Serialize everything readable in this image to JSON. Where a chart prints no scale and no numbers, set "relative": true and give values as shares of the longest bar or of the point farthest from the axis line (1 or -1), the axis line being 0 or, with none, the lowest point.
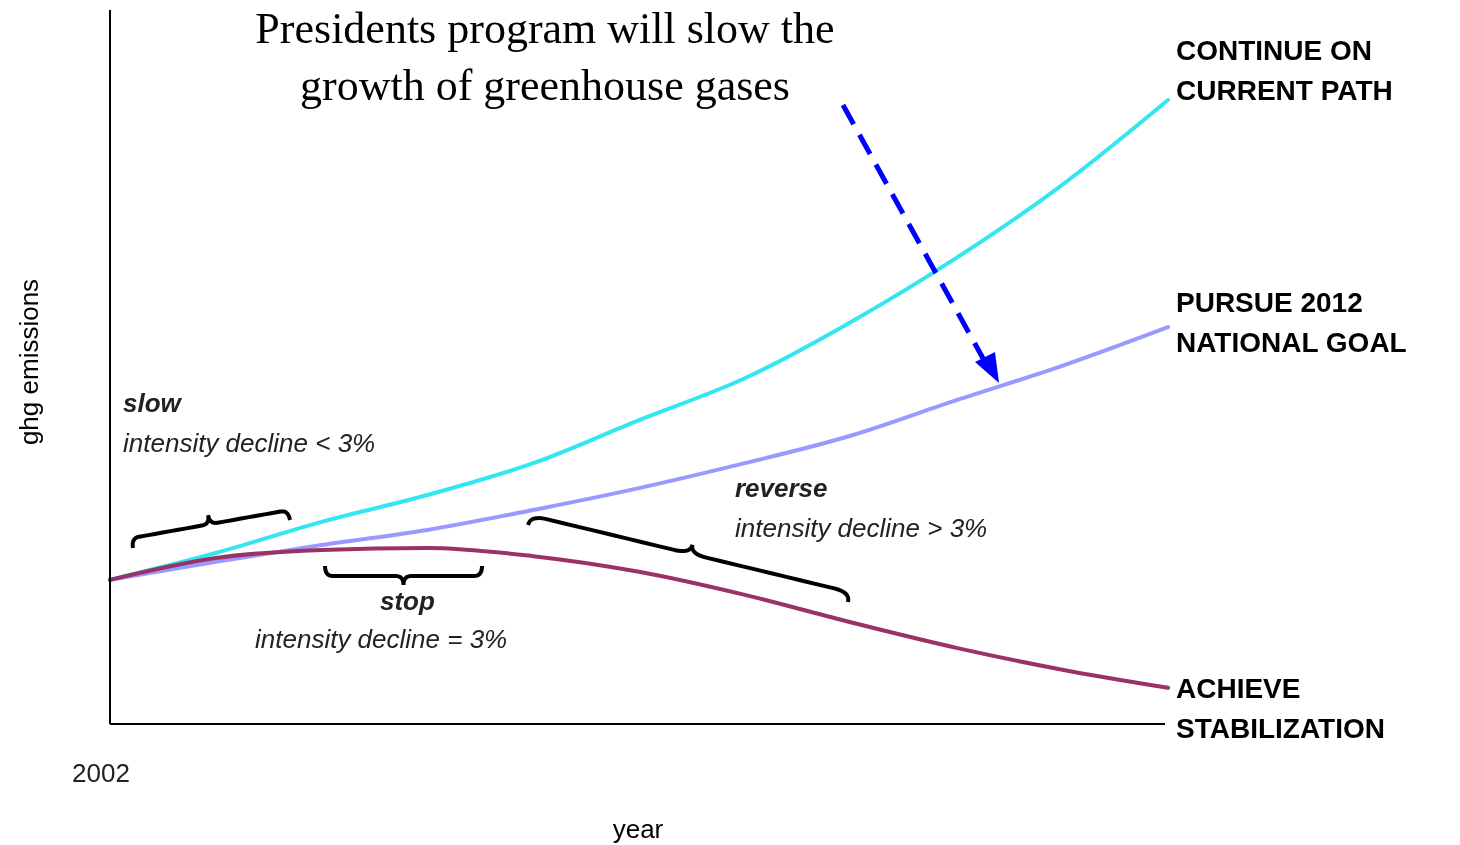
{
  "chart_data": {
    "type": "line",
    "title": "Presidents program will slow the growth of greenhouse gases",
    "xlabel": "year",
    "ylabel": "ghg emissions",
    "relative": true,
    "categories": [
      null,
      null,
      null,
      null,
      null,
      null,
      null,
      null,
      null,
      null,
      null
    ],
    "series": [
      {
        "name": "CONTINUE ON CURRENT PATH",
        "color": "#33e6f0",
        "values": [
          0.231,
          0.274,
          0.324,
          0.367,
          0.418,
          0.487,
          0.554,
          0.644,
          0.747,
          0.864,
          1
        ]
      },
      {
        "name": "PURSUE 2012 NATIONAL GOAL",
        "color": "#9999ff",
        "values": [
          0.231,
          0.26,
          0.287,
          0.311,
          0.343,
          0.378,
          0.418,
          0.462,
          0.519,
          0.574,
          0.636
        ]
      },
      {
        "name": "ACHIEVE STABILIZATION",
        "color": "#993366",
        "values": [
          0.231,
          0.266,
          0.279,
          0.282,
          0.269,
          0.244,
          0.207,
          0.163,
          0.122,
          0.087,
          0.058
        ]
      }
    ],
    "annotations": [
      "2002",
      "slow",
      "intensity decline < 3%",
      "stop",
      "intensity decline = 3%",
      "reverse",
      "intensity decline > 3%"
    ]
  }
}
